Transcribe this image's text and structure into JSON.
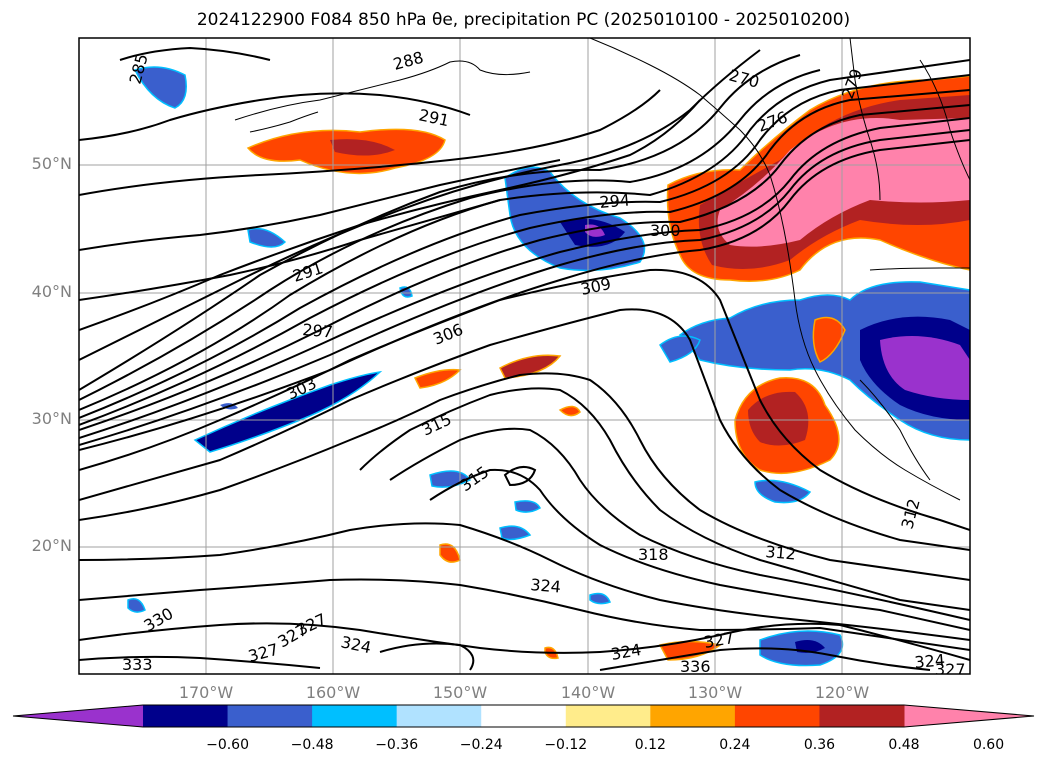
{
  "title": "2024122900 F084 850 hPa θe, precipitation PC (2025010100 - 2025010200)",
  "lat_labels": [
    "50°N",
    "40°N",
    "30°N",
    "20°N"
  ],
  "lon_labels": [
    "170°W",
    "160°W",
    "150°W",
    "140°W",
    "130°W",
    "120°W"
  ],
  "colorbar": {
    "colors": [
      "#9a32cd",
      "#00008b",
      "#3a5fcd",
      "#00bfff",
      "#b0e2ff",
      "#ffffff",
      "#ffec8b",
      "#ffa500",
      "#ff4500",
      "#b22222",
      "#ff82ab"
    ],
    "ticks": [
      "−0.60",
      "−0.48",
      "−0.36",
      "−0.24",
      "−0.12",
      "0.12",
      "0.24",
      "0.36",
      "0.48",
      "0.60"
    ]
  },
  "contour_labels": [
    "285",
    "288",
    "270",
    "279",
    "276",
    "291",
    "294",
    "300",
    "291",
    "309",
    "297",
    "306",
    "303",
    "315",
    "315",
    "318",
    "312",
    "312",
    "324",
    "330",
    "327",
    "327",
    "324",
    "324",
    "327",
    "336",
    "333",
    "327",
    "324",
    "327"
  ]
}
